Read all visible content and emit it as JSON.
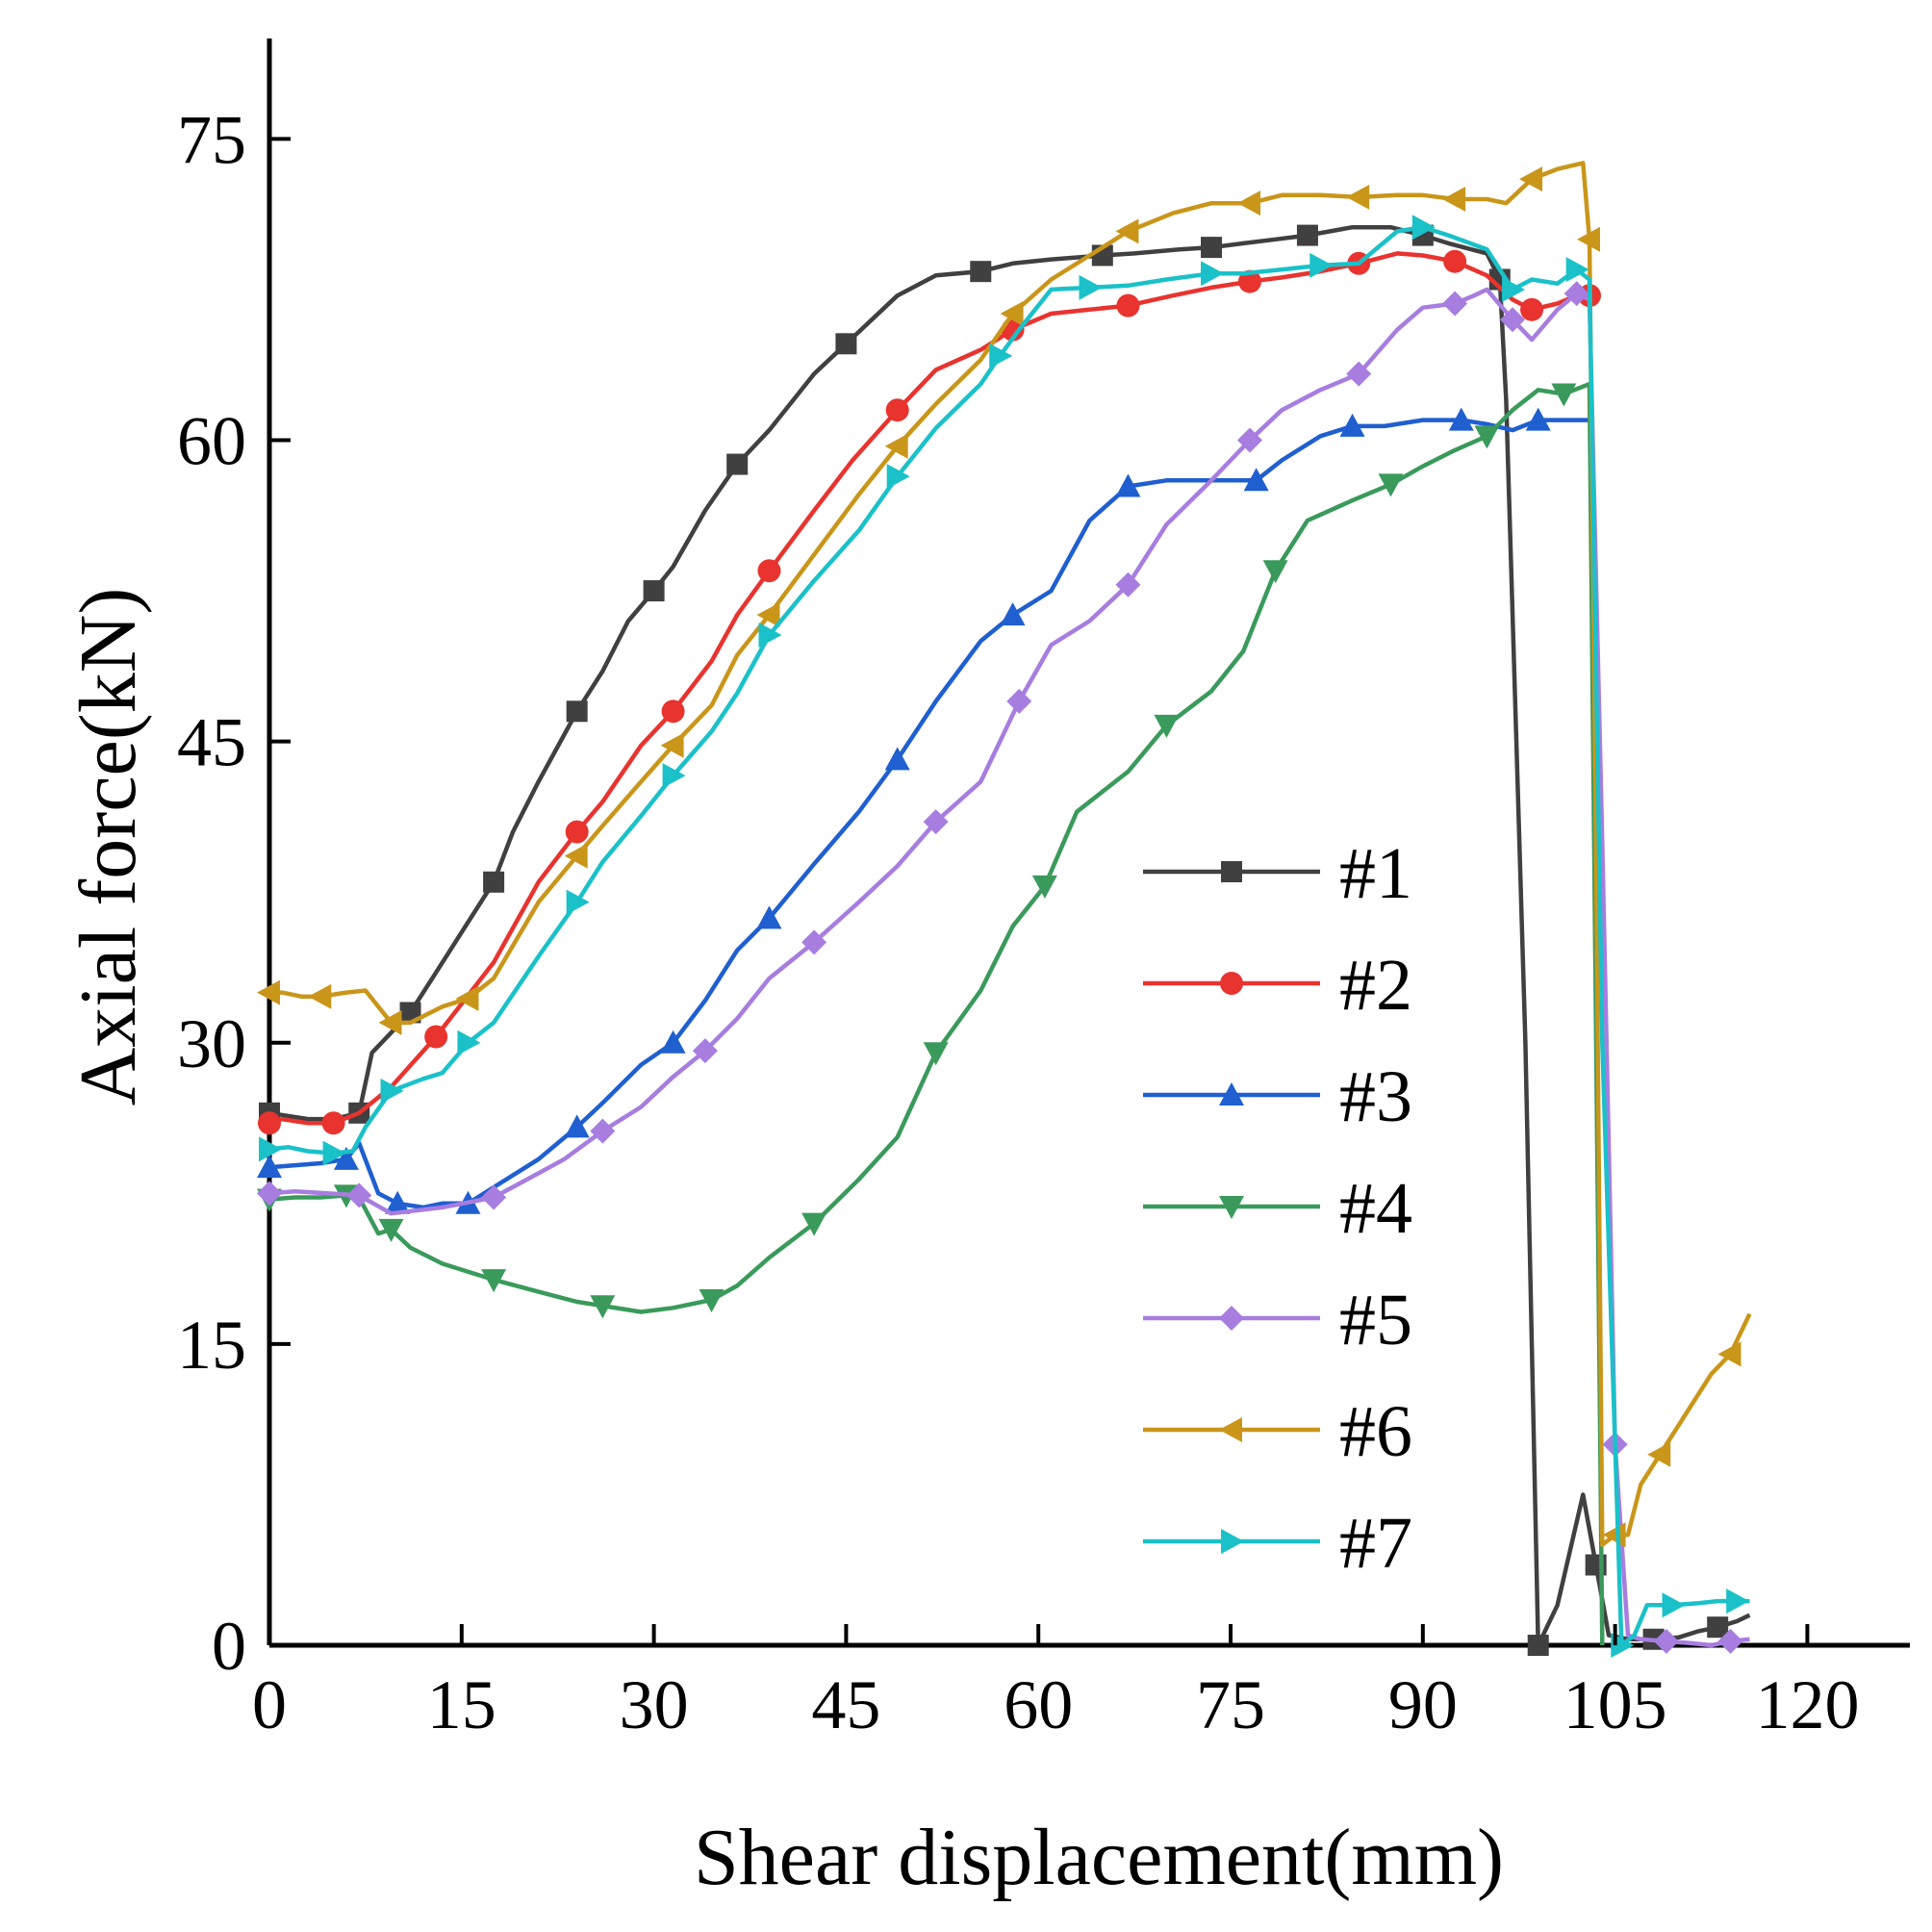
{
  "chart_data": {
    "type": "line",
    "title": "",
    "xlabel": "Shear displacement(mm)",
    "ylabel": "Axial force(kN)",
    "xlim": [
      0,
      128
    ],
    "ylim": [
      0,
      80
    ],
    "xticks": [
      0,
      15,
      30,
      45,
      60,
      75,
      90,
      105,
      120
    ],
    "yticks": [
      0,
      15,
      30,
      45,
      60,
      75
    ],
    "grid": false,
    "legend_position": "right-middle",
    "series": [
      {
        "name": "#1",
        "color": "#404040",
        "marker": "square",
        "x": [
          0,
          3,
          5,
          7,
          8,
          9.5,
          11,
          13,
          15,
          17.5,
          19,
          21,
          24,
          26,
          28,
          30,
          31.5,
          34,
          36.5,
          39,
          42.5,
          45,
          49,
          52,
          55.5,
          58,
          61,
          65,
          67.5,
          71,
          73.5,
          76,
          78.5,
          81,
          84.5,
          87.5,
          90,
          92,
          95,
          96,
          96.5,
          98,
          99,
          100.5,
          102.5,
          103.5,
          104.5,
          106,
          108,
          110,
          111.5,
          113,
          114.5,
          115.5
        ],
        "y": [
          26.5,
          26.2,
          26.2,
          26.5,
          29.5,
          30.5,
          31.5,
          33.5,
          35.5,
          38,
          40.5,
          43,
          46.5,
          48.5,
          51,
          52.5,
          53.7,
          56.5,
          58.8,
          60.5,
          63.3,
          64.8,
          67.2,
          68.2,
          68.4,
          68.8,
          69,
          69.2,
          69.3,
          69.5,
          69.6,
          69.8,
          70,
          70.2,
          70.6,
          70.6,
          70.2,
          69.8,
          69.3,
          68,
          62,
          30,
          0,
          2,
          7.5,
          4,
          0.5,
          0.3,
          0.3,
          0.4,
          0.7,
          0.9,
          1.2,
          1.5
        ]
      },
      {
        "name": "#2",
        "color": "#e8332f",
        "marker": "circle",
        "x": [
          0,
          1,
          3,
          5,
          7,
          9.5,
          13,
          17.5,
          21,
          24,
          26,
          29,
          31.5,
          34.5,
          36.5,
          39,
          42.5,
          45.5,
          49,
          52,
          55.5,
          58,
          61,
          64,
          67,
          70.5,
          73.5,
          76.5,
          79,
          82,
          85,
          88,
          90,
          92.5,
          95,
          97,
          98.5,
          100.5,
          102,
          103
        ],
        "y": [
          26,
          26.2,
          26,
          26,
          26.5,
          27.8,
          30.3,
          34,
          38,
          40.5,
          42,
          44.8,
          46.5,
          49,
          51.3,
          53.5,
          56.5,
          59,
          61.5,
          63.5,
          64.5,
          65.5,
          66.3,
          66.5,
          66.7,
          67.2,
          67.6,
          67.9,
          68.1,
          68.4,
          68.8,
          69.3,
          69.2,
          68.9,
          68.2,
          67,
          66.5,
          66.8,
          67.2,
          67.2
        ]
      },
      {
        "name": "#3",
        "color": "#1f5fd0",
        "marker": "triangle-up",
        "x": [
          0,
          2,
          4,
          6,
          7,
          8.5,
          10,
          12,
          13.5,
          15.5,
          17.5,
          21,
          24,
          26,
          29,
          31.5,
          34,
          36.5,
          39,
          42.5,
          46,
          49,
          52,
          55.5,
          58,
          61,
          64,
          67,
          70,
          73.5,
          77,
          79,
          82,
          84.5,
          87,
          90,
          93,
          95,
          97,
          99,
          101,
          103
        ],
        "y": [
          23.8,
          23.9,
          24,
          24.2,
          25,
          22.5,
          22,
          21.8,
          22,
          22,
          22.8,
          24.2,
          25.8,
          27,
          28.9,
          30,
          32.1,
          34.6,
          36.2,
          38.9,
          41.5,
          44.1,
          47,
          50,
          51.3,
          52.5,
          56,
          57.7,
          58,
          58,
          58,
          59,
          60.2,
          60.7,
          60.7,
          61,
          61,
          60.8,
          60.5,
          61,
          61,
          61
        ]
      },
      {
        "name": "#4",
        "color": "#3a9a5b",
        "marker": "triangle-down",
        "x": [
          0,
          2,
          4,
          6,
          7,
          8.5,
          9.5,
          11,
          13.5,
          17.5,
          21,
          24,
          26,
          29,
          31.5,
          34.5,
          36.5,
          39,
          42.5,
          46,
          49,
          52,
          55.5,
          58,
          60.5,
          63,
          67,
          70,
          73.5,
          76,
          78.5,
          81,
          84.5,
          87.5,
          90,
          92.5,
          95,
          97,
          99,
          101,
          103,
          104
        ],
        "y": [
          22.2,
          22.3,
          22.3,
          22.4,
          22.3,
          20.5,
          20.7,
          19.8,
          19,
          18.2,
          17.6,
          17.1,
          16.9,
          16.6,
          16.8,
          17.2,
          17.9,
          19.3,
          21,
          23.2,
          25.3,
          29.5,
          32.6,
          35.8,
          37.8,
          41.5,
          43.5,
          45.8,
          47.5,
          49.5,
          53.5,
          56,
          57,
          57.8,
          58.7,
          59.5,
          60.2,
          61.5,
          62.5,
          62.3,
          62.8,
          0
        ]
      },
      {
        "name": "#5",
        "color": "#a77de0",
        "marker": "diamond",
        "x": [
          0,
          2,
          4.5,
          7,
          9.5,
          13.5,
          17.5,
          21,
          23,
          26,
          29,
          31.5,
          34,
          36.5,
          39,
          42.5,
          46,
          49,
          52,
          55.5,
          57,
          58.5,
          61,
          64,
          67,
          70,
          73.5,
          76.5,
          79,
          82,
          85,
          88,
          90,
          92.5,
          94,
          95,
          97,
          98.5,
          100.5,
          102,
          103,
          104,
          105,
          106,
          107,
          109,
          111,
          112.5,
          114,
          115.5
        ],
        "y": [
          22.5,
          22.6,
          22.5,
          22.4,
          21.5,
          21.8,
          22.3,
          23.5,
          24.2,
          25.6,
          26.8,
          28.3,
          29.6,
          31.2,
          33.2,
          35,
          37,
          38.8,
          41,
          43,
          45,
          47,
          49.8,
          51,
          52.8,
          55.8,
          58,
          60,
          61.5,
          62.5,
          63.3,
          65.5,
          66.6,
          66.8,
          67.2,
          67.5,
          66,
          65,
          66.5,
          67.3,
          67,
          40,
          10,
          0.5,
          0.3,
          0.2,
          0.1,
          0,
          0.2,
          0.3
        ]
      },
      {
        "name": "#6",
        "color": "#c9961a",
        "marker": "triangle-left",
        "x": [
          0,
          1,
          2.5,
          4,
          6,
          7.5,
          9.5,
          11,
          13.5,
          15.5,
          17.5,
          21,
          24,
          26,
          29,
          31.5,
          34.5,
          36.5,
          39,
          42.5,
          46,
          49,
          52,
          55.5,
          58,
          61,
          64,
          67,
          70.5,
          73.5,
          76.5,
          79,
          82,
          85,
          88,
          90,
          92.5,
          95,
          96.5,
          98.5,
          100.5,
          102.5,
          103,
          103.5,
          104,
          105,
          106,
          107,
          108.5,
          110.5,
          112.5,
          114,
          115.5
        ],
        "y": [
          32.5,
          32.5,
          32.3,
          32.3,
          32.5,
          32.6,
          31,
          31,
          31.8,
          32.2,
          33.2,
          37,
          39.3,
          40.8,
          43,
          44.8,
          46.8,
          49.3,
          51.3,
          54.3,
          57.3,
          59.7,
          61.8,
          64,
          66.3,
          68,
          69.2,
          70.4,
          71.3,
          71.8,
          71.8,
          72.2,
          72.2,
          72.1,
          72.2,
          72.2,
          72,
          72,
          71.8,
          73,
          73.5,
          73.8,
          70,
          40,
          5,
          5.5,
          5.5,
          8,
          9.5,
          11.5,
          13.5,
          14.5,
          16.5
        ]
      },
      {
        "name": "#7",
        "color": "#1ac1c8",
        "marker": "triangle-right",
        "x": [
          0,
          1.5,
          3,
          5,
          6.5,
          7.5,
          9.5,
          12,
          13.5,
          15.5,
          17.5,
          21,
          24,
          26,
          29,
          31.5,
          34.5,
          36.5,
          39,
          42.5,
          46,
          49,
          52,
          55.5,
          57,
          58.5,
          61,
          64,
          67,
          70,
          73.5,
          76,
          79,
          82,
          85,
          88,
          90,
          92,
          95,
          97,
          98.5,
          100.5,
          102,
          103,
          104,
          105.5,
          106.5,
          107.5,
          109.5,
          111.5,
          113,
          114.5,
          115.5
        ],
        "y": [
          24.7,
          24.8,
          24.6,
          24.5,
          24.6,
          25.8,
          27.6,
          28.2,
          28.5,
          30,
          31,
          34.3,
          37,
          39,
          41.3,
          43.3,
          45.5,
          47.4,
          50.3,
          53,
          55.5,
          58.2,
          60.6,
          62.8,
          64.2,
          65.5,
          67.5,
          67.6,
          67.7,
          68,
          68.3,
          68.3,
          68.5,
          68.7,
          68.8,
          70.4,
          70.6,
          70.2,
          69.5,
          67.5,
          68,
          67.8,
          68.5,
          68,
          30,
          0,
          0.5,
          2,
          2,
          2.1,
          2.2,
          2.2,
          2.2
        ]
      }
    ]
  }
}
